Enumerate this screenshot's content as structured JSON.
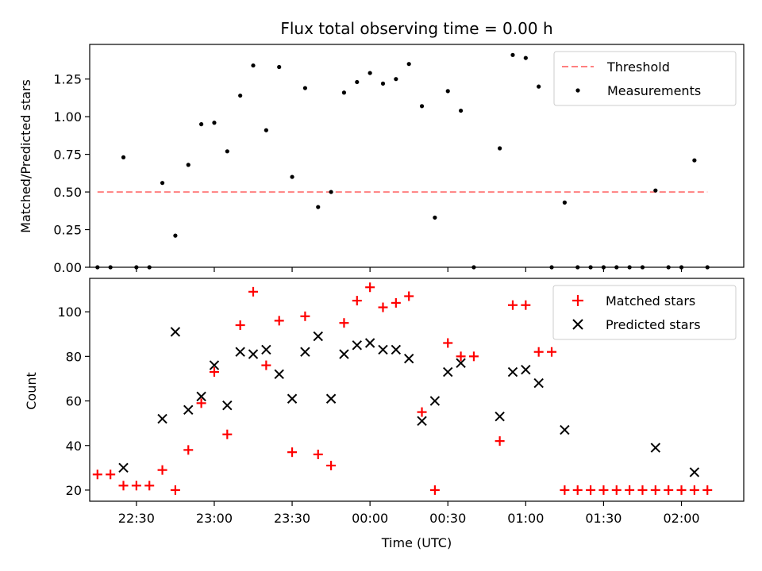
{
  "chart_data": {
    "type": "scatter",
    "title": "Flux total observing time = 0.00 h",
    "xlabel": "Time (UTC)",
    "x_range": [
      "22:12",
      "02:24"
    ],
    "x_ticks": [
      "22:30",
      "23:00",
      "23:30",
      "00:00",
      "00:30",
      "01:00",
      "01:30",
      "02:00"
    ],
    "sample_times": [
      "22:15",
      "22:20",
      "22:25",
      "22:30",
      "22:35",
      "22:40",
      "22:45",
      "22:50",
      "22:55",
      "23:00",
      "23:05",
      "23:10",
      "23:15",
      "23:20",
      "23:25",
      "23:30",
      "23:35",
      "23:40",
      "23:45",
      "23:50",
      "23:55",
      "00:00",
      "00:05",
      "00:10",
      "00:15",
      "00:20",
      "00:25",
      "00:30",
      "00:35",
      "00:40",
      "00:45",
      "00:50",
      "00:55",
      "01:00",
      "01:05",
      "01:10",
      "01:15",
      "01:20",
      "01:25",
      "01:30",
      "01:35",
      "01:40",
      "01:45",
      "01:50",
      "01:55",
      "02:00",
      "02:05",
      "02:10"
    ],
    "panels": [
      {
        "ylabel": "Matched/Predicted stars",
        "ylim": [
          0,
          1.48
        ],
        "y_ticks": [
          "0.00",
          "0.25",
          "0.50",
          "0.75",
          "1.00",
          "1.25"
        ],
        "y_tick_values": [
          0,
          0.25,
          0.5,
          0.75,
          1.0,
          1.25
        ],
        "threshold": {
          "name": "Threshold",
          "value": 0.5,
          "x_start": "22:15",
          "x_end": "02:10",
          "color": "#ff8080"
        },
        "series": [
          {
            "name": "Measurements",
            "marker": "dot",
            "color": "#000000",
            "values": [
              0,
              0,
              0.73,
              0,
              0,
              0.56,
              0.21,
              0.68,
              0.95,
              0.96,
              0.77,
              1.14,
              1.34,
              0.91,
              1.33,
              0.6,
              1.19,
              0.4,
              0.5,
              1.16,
              1.23,
              1.29,
              1.22,
              1.25,
              1.35,
              1.07,
              0.33,
              1.17,
              1.04,
              0,
              null,
              0.79,
              1.41,
              1.39,
              1.2,
              0,
              0.43,
              0,
              0,
              0,
              0,
              0,
              0,
              0.51,
              0,
              0,
              0.71,
              0
            ]
          }
        ],
        "legend_position": "upper right"
      },
      {
        "ylabel": "Count",
        "ylim": [
          15,
          115
        ],
        "y_ticks": [
          "20",
          "40",
          "60",
          "80",
          "100"
        ],
        "y_tick_values": [
          20,
          40,
          60,
          80,
          100
        ],
        "series": [
          {
            "name": "Matched stars",
            "marker": "plus",
            "color": "#ff0000",
            "values": [
              27,
              27,
              22,
              22,
              22,
              29,
              20,
              38,
              59,
              73,
              45,
              94,
              109,
              76,
              96,
              37,
              98,
              36,
              31,
              95,
              105,
              111,
              102,
              104,
              107,
              55,
              20,
              86,
              80,
              80,
              null,
              42,
              103,
              103,
              82,
              82,
              20,
              20,
              20,
              20,
              20,
              20,
              20,
              20,
              20,
              20,
              20,
              20
            ]
          },
          {
            "name": "Predicted stars",
            "marker": "x",
            "color": "#000000",
            "values": [
              null,
              null,
              30,
              null,
              null,
              52,
              91,
              56,
              62,
              76,
              58,
              82,
              81,
              83,
              72,
              61,
              82,
              89,
              61,
              81,
              85,
              86,
              83,
              83,
              79,
              51,
              60,
              73,
              77,
              null,
              null,
              53,
              73,
              74,
              68,
              null,
              47,
              null,
              null,
              null,
              null,
              null,
              null,
              39,
              null,
              null,
              28,
              null
            ]
          }
        ],
        "legend_position": "upper right"
      }
    ]
  }
}
